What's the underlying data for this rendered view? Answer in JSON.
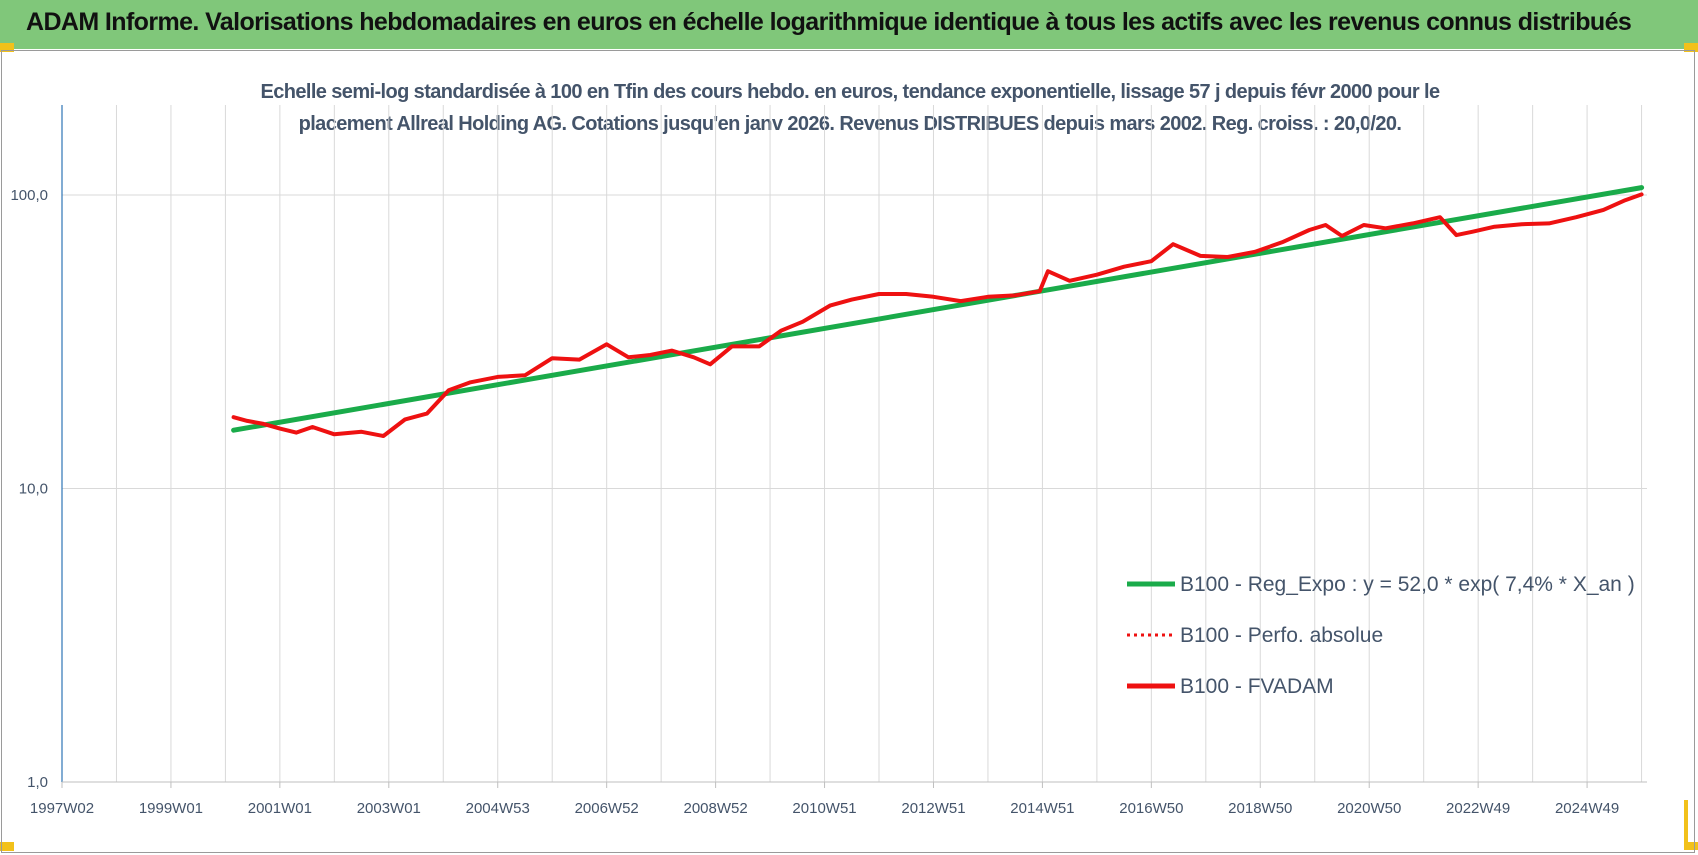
{
  "header": {
    "title": "ADAM Informe. Valorisations hebdomadaires en euros en échelle logarithmique identique à tous les actifs avec les revenus connus distribués"
  },
  "colors": {
    "banner": "#80c77a",
    "regression": "#1aab4a",
    "fvadam": "#ee1111",
    "perfo": "#ee1111",
    "grid": "#d9d9d9",
    "text": "#44546a"
  },
  "chart_data": {
    "type": "line",
    "title_line1": "Echelle semi-log standardisée à 100 en Tfin des cours hebdo. en euros, tendance exponentielle, lissage 57 j depuis févr 2000 pour le",
    "title_line2": "placement Allreal Holding AG. Cotations jusqu'en janv 2026. Revenus DISTRIBUES depuis mars 2002. Reg. croiss. : 20,0/20.",
    "y_scale": "log",
    "ylim": [
      1,
      200
    ],
    "y_ticks": [
      {
        "value": 1,
        "label": "1,0"
      },
      {
        "value": 10,
        "label": "10,0"
      },
      {
        "value": 100,
        "label": "100,0"
      }
    ],
    "xlim": [
      1997.0,
      2026.1
    ],
    "x_ticks": [
      {
        "value": 1997.0,
        "label": "1997W02"
      },
      {
        "value": 1999.0,
        "label": "1999W01"
      },
      {
        "value": 2001.0,
        "label": "2001W01"
      },
      {
        "value": 2003.0,
        "label": "2003W01"
      },
      {
        "value": 2005.0,
        "label": "2004W53"
      },
      {
        "value": 2007.0,
        "label": "2006W52"
      },
      {
        "value": 2009.0,
        "label": "2008W52"
      },
      {
        "value": 2011.0,
        "label": "2010W51"
      },
      {
        "value": 2013.0,
        "label": "2012W51"
      },
      {
        "value": 2015.0,
        "label": "2014W51"
      },
      {
        "value": 2017.0,
        "label": "2016W50"
      },
      {
        "value": 2019.0,
        "label": "2018W50"
      },
      {
        "value": 2021.0,
        "label": "2020W50"
      },
      {
        "value": 2023.0,
        "label": "2022W49"
      },
      {
        "value": 2025.0,
        "label": "2024W49"
      }
    ],
    "grid": true,
    "legend_position": "bottom-right",
    "series": [
      {
        "name": "B100 - Reg_Expo : y = 52,0 * exp( 7,4% *  X_an )",
        "style": "solid",
        "color": "#1aab4a",
        "x": [
          2000.15,
          2026.0
        ],
        "y": [
          15.8,
          106
        ]
      },
      {
        "name": "B100 - Perfo. absolue",
        "style": "dotted",
        "color": "#ee1111",
        "x": [],
        "y": []
      },
      {
        "name": "B100 - FVADAM",
        "style": "solid",
        "color": "#ee1111",
        "x": [
          2000.15,
          2000.4,
          2000.7,
          2001.0,
          2001.3,
          2001.6,
          2002.0,
          2002.5,
          2002.9,
          2003.3,
          2003.7,
          2004.1,
          2004.5,
          2005.0,
          2005.5,
          2006.0,
          2006.5,
          2007.0,
          2007.4,
          2007.8,
          2008.2,
          2008.6,
          2008.9,
          2009.3,
          2009.8,
          2010.2,
          2010.6,
          2011.1,
          2011.5,
          2012.0,
          2012.5,
          2013.0,
          2013.5,
          2014.0,
          2014.5,
          2014.95,
          2015.1,
          2015.5,
          2016.0,
          2016.5,
          2017.0,
          2017.4,
          2017.9,
          2018.4,
          2018.9,
          2019.4,
          2019.9,
          2020.2,
          2020.5,
          2020.9,
          2021.3,
          2021.8,
          2022.3,
          2022.6,
          2022.9,
          2023.3,
          2023.8,
          2024.3,
          2024.8,
          2025.3,
          2025.7,
          2026.0
        ],
        "y": [
          17.5,
          17.0,
          16.6,
          16.0,
          15.5,
          16.2,
          15.3,
          15.6,
          15.1,
          17.2,
          18.0,
          21.6,
          23.0,
          24.0,
          24.3,
          27.8,
          27.5,
          31.0,
          28.0,
          28.5,
          29.5,
          28.0,
          26.5,
          30.5,
          30.5,
          34.5,
          37.0,
          42.0,
          44.0,
          46.0,
          46.0,
          45.0,
          43.5,
          45.0,
          45.5,
          47.0,
          55.0,
          51.0,
          53.5,
          57.0,
          59.5,
          68.0,
          62.0,
          61.5,
          64.0,
          69.0,
          76.0,
          79.0,
          72.5,
          79.0,
          77.0,
          80.0,
          84.0,
          73.0,
          75.0,
          78.0,
          79.5,
          80.0,
          84.0,
          89.0,
          96.0,
          100.5
        ]
      }
    ]
  }
}
